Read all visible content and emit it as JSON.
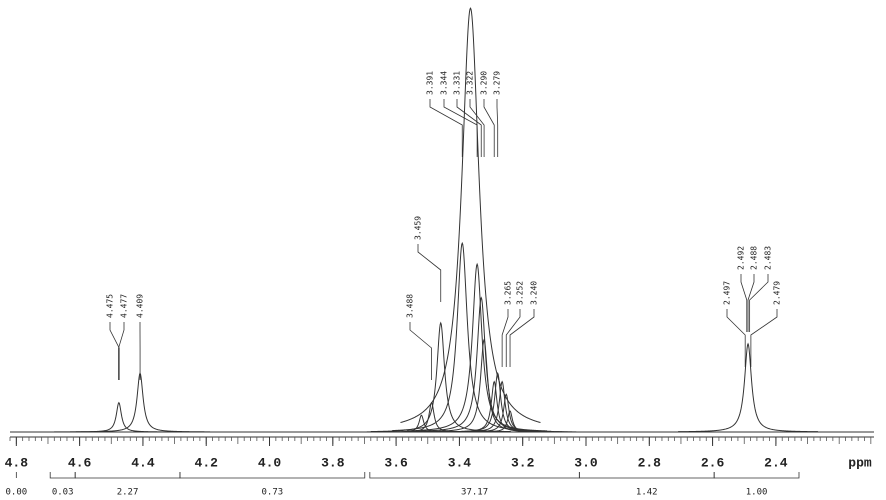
{
  "chart_data": {
    "type": "nmr",
    "x_label": "ppm",
    "xlim": [
      4.82,
      2.09
    ],
    "ylim": [
      0,
      102
    ],
    "xticks": [
      4.8,
      4.6,
      4.4,
      4.2,
      {
        "value": 4,
        "label": "4.0"
      },
      3.8,
      3.6,
      3.4,
      3.2,
      {
        "value": 3,
        "label": "3.0"
      },
      2.8,
      2.6,
      2.4
    ],
    "color": "#333333",
    "peaks": [
      {
        "ppm": 4.476,
        "intensity": 7
      },
      {
        "ppm": 4.409,
        "intensity": 14
      },
      {
        "ppm": 3.52,
        "intensity": 4
      },
      {
        "ppm": 3.488,
        "intensity": 7
      },
      {
        "ppm": 3.459,
        "intensity": 26
      },
      {
        "ppm": 3.391,
        "intensity": 45
      },
      {
        "ppm": 3.365,
        "intensity": 101
      },
      {
        "ppm": 3.344,
        "intensity": 40
      },
      {
        "ppm": 3.331,
        "intensity": 32
      },
      {
        "ppm": 3.322,
        "intensity": 22
      },
      {
        "ppm": 3.29,
        "intensity": 12
      },
      {
        "ppm": 3.279,
        "intensity": 14
      },
      {
        "ppm": 3.265,
        "intensity": 12
      },
      {
        "ppm": 3.252,
        "intensity": 9
      },
      {
        "ppm": 3.24,
        "intensity": 5
      },
      {
        "ppm": 2.488,
        "intensity": 21
      }
    ],
    "peak_labels": [
      {
        "value": 4.475,
        "label": "4.475"
      },
      {
        "value": 4.477,
        "label": "4.477"
      },
      {
        "value": 4.409,
        "label": "4.409"
      },
      {
        "value": 3.488,
        "label": "3.488"
      },
      {
        "value": 3.459,
        "label": "3.459"
      },
      {
        "value": 3.391,
        "label": "3.391"
      },
      {
        "value": 3.344,
        "label": "3.344"
      },
      {
        "value": 3.331,
        "label": "3.331"
      },
      {
        "value": 3.322,
        "label": "3.322"
      },
      {
        "value": 3.29,
        "label": "3.290"
      },
      {
        "value": 3.279,
        "label": "3.279"
      },
      {
        "value": 3.265,
        "label": "3.265"
      },
      {
        "value": 3.252,
        "label": "3.252"
      },
      {
        "value": 3.24,
        "label": "3.240"
      },
      {
        "value": 2.497,
        "label": "2.497"
      },
      {
        "value": 2.492,
        "label": "2.492"
      },
      {
        "value": 2.488,
        "label": "2.488"
      },
      {
        "value": 2.483,
        "label": "2.483"
      },
      {
        "value": 2.479,
        "label": "2.479"
      }
    ],
    "integrals": [
      {
        "range": [
          4.8,
          4.8
        ],
        "label": "0.00"
      },
      {
        "range": [
          4.693,
          4.614
        ],
        "label": "0.03"
      },
      {
        "range": [
          4.614,
          4.283
        ],
        "label": "2.27"
      },
      {
        "range": [
          4.283,
          3.699
        ],
        "label": "0.73"
      },
      {
        "range": [
          3.683,
          3.021
        ],
        "label": "37.17"
      },
      {
        "range": [
          3.021,
          2.595
        ],
        "label": "1.42"
      },
      {
        "range": [
          2.595,
          2.327
        ],
        "label": "1.00"
      }
    ]
  }
}
